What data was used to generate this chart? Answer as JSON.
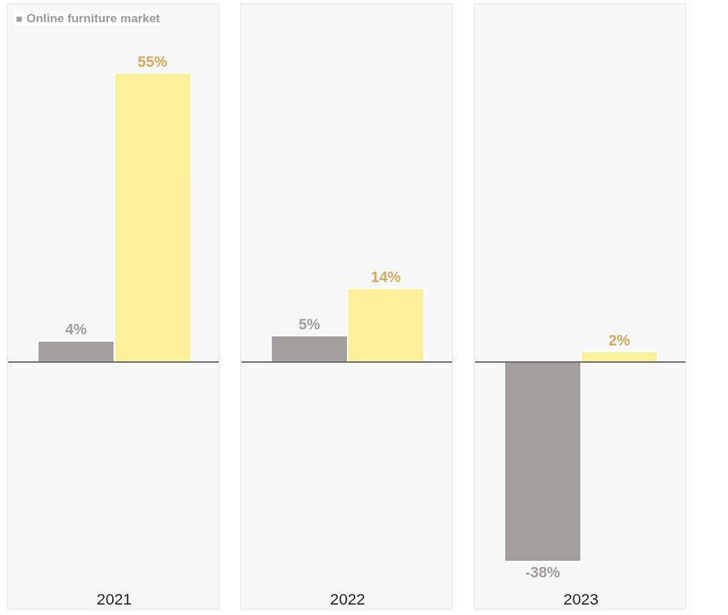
{
  "chart_data": {
    "type": "bar",
    "categories": [
      "2021",
      "2022",
      "2023"
    ],
    "series": [
      {
        "name": "Online furniture market",
        "color": "#a39e9e",
        "values": [
          4,
          5,
          -38
        ],
        "value_labels": [
          "4%",
          "5%",
          "-38%"
        ]
      },
      {
        "color": "#fbef9a",
        "values": [
          55,
          14,
          2
        ],
        "value_labels": [
          "55%",
          "14%",
          "2%"
        ]
      }
    ],
    "ref_lines": [
      {
        "axis": "y",
        "value": 0,
        "color": "#333333"
      }
    ],
    "bands": [
      {
        "axis": "x",
        "from": "2021",
        "to": "2021",
        "color": "#f7f7f7"
      },
      {
        "axis": "x",
        "from": "2022",
        "to": "2022",
        "color": "#f7f7f7"
      },
      {
        "axis": "x",
        "from": "2023",
        "to": "2023",
        "color": "#f7f7f7"
      }
    ],
    "legend": "top left",
    "grid": false
  }
}
